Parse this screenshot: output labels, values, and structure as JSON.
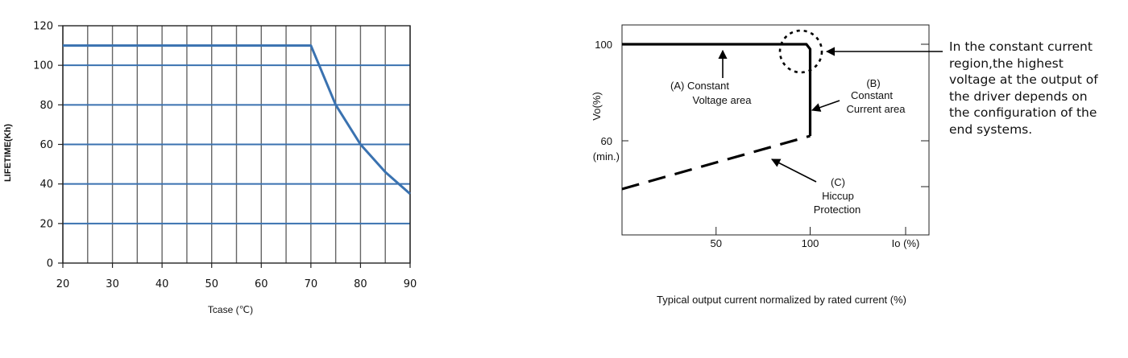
{
  "chart_data": [
    {
      "type": "line",
      "title": "",
      "xlabel": "Tcase (℃)",
      "ylabel": "LIFETIME(Kh)",
      "xlim": [
        20,
        90
      ],
      "ylim": [
        0,
        120
      ],
      "x_ticks": [
        20,
        30,
        40,
        50,
        60,
        70,
        80,
        90
      ],
      "y_ticks": [
        0,
        20,
        40,
        60,
        80,
        100,
        120
      ],
      "x_grid_step": 5,
      "grid": true,
      "line_color": "#3a72b0",
      "series": [
        {
          "x": [
            20,
            70,
            75,
            80,
            85,
            90
          ],
          "values": [
            110,
            110,
            80,
            60,
            46,
            35
          ]
        }
      ]
    },
    {
      "type": "line",
      "title": "",
      "xlabel": "Typical output current normalized by rated current (%)",
      "ylabel": "Vo(%)",
      "x_ticks": [
        50,
        100
      ],
      "x_tick_labels": [
        "50",
        "100"
      ],
      "x_axis_end_label": "Io (%)",
      "y_ticks": [
        60,
        100
      ],
      "y_tick_labels": [
        "60",
        "100"
      ],
      "y_tick_sublabel": "(min.)",
      "grid": false,
      "line_color": "#000000",
      "series": [
        {
          "style": "solid",
          "x": [
            0,
            98,
            100,
            100
          ],
          "values": [
            100,
            100,
            98,
            62
          ]
        },
        {
          "style": "dashed",
          "x": [
            0,
            100
          ],
          "values": [
            40,
            62
          ]
        }
      ],
      "annotations": [
        {
          "lines": [
            "(A)   Constant",
            "Voltage area"
          ]
        },
        {
          "lines": [
            "(B)",
            "Constant",
            "Current area"
          ]
        },
        {
          "lines": [
            "(C)",
            "Hiccup",
            "Protection"
          ]
        }
      ],
      "note": [
        "In the constant current",
        "region,the highest",
        "voltage at the output of",
        "the driver depends on",
        "the configuration of the",
        "end systems."
      ]
    }
  ]
}
